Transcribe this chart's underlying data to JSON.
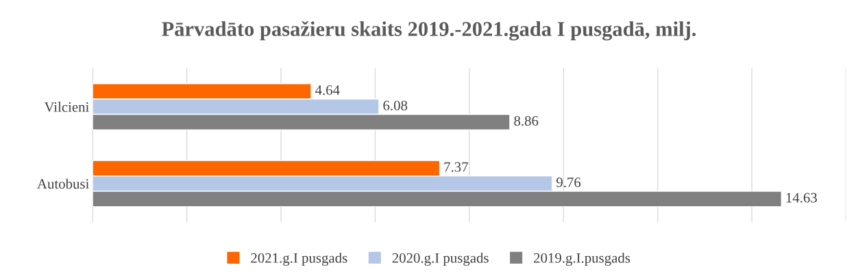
{
  "chart_data": {
    "type": "bar",
    "orientation": "horizontal",
    "title": "Pārvadāto pasažieru skaits 2019.-2021.gada I pusgadā, milj.",
    "categories": [
      "Vilcieni",
      "Autobusi"
    ],
    "series": [
      {
        "name": "2021.g.I pusgads",
        "color": "#ff6600",
        "values": [
          4.64,
          7.37
        ]
      },
      {
        "name": "2020.g.I pusgads",
        "color": "#b4c7e7",
        "values": [
          6.08,
          9.76
        ]
      },
      {
        "name": "2019.g.I.pusgads",
        "color": "#808080",
        "values": [
          8.86,
          14.63
        ]
      }
    ],
    "data_labels": true,
    "xlim": [
      0,
      16
    ],
    "xticks": [
      {
        "value": 0,
        "label": null
      },
      {
        "value": 2,
        "label": null
      },
      {
        "value": 4,
        "label": null
      },
      {
        "value": 6,
        "label": null
      },
      {
        "value": 8,
        "label": null
      },
      {
        "value": 10,
        "label": null
      },
      {
        "value": 12,
        "label": null
      },
      {
        "value": 14,
        "label": null
      },
      {
        "value": 16,
        "label": null
      }
    ],
    "tick_labels": "y",
    "grid": "x",
    "legend": "bottom"
  }
}
